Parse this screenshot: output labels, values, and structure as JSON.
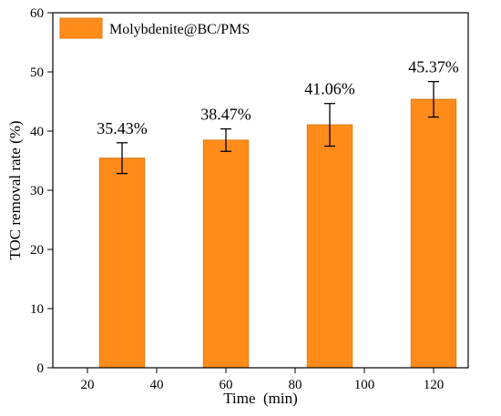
{
  "chart_data": {
    "type": "bar",
    "x": [
      30,
      60,
      90,
      120
    ],
    "bar_width": 13,
    "series": [
      {
        "name": "Molybdenite@BC/PMS",
        "values": [
          35.43,
          38.47,
          41.06,
          45.37
        ],
        "errors": [
          2.6,
          1.9,
          3.6,
          3.0
        ],
        "data_labels": [
          "35.43%",
          "38.47%",
          "41.06%",
          "45.37%"
        ],
        "color": "#ff8c1a",
        "edge_color": "#e07a10"
      }
    ],
    "xlabel": "Time  (min)",
    "ylabel": "TOC removal rate (%)",
    "xlim": [
      10,
      130
    ],
    "ylim": [
      0,
      60
    ],
    "xticks": [
      20,
      40,
      60,
      80,
      100,
      120
    ],
    "yticks": [
      0,
      10,
      20,
      30,
      40,
      50,
      60
    ],
    "legend": "top-left",
    "grid": false
  }
}
